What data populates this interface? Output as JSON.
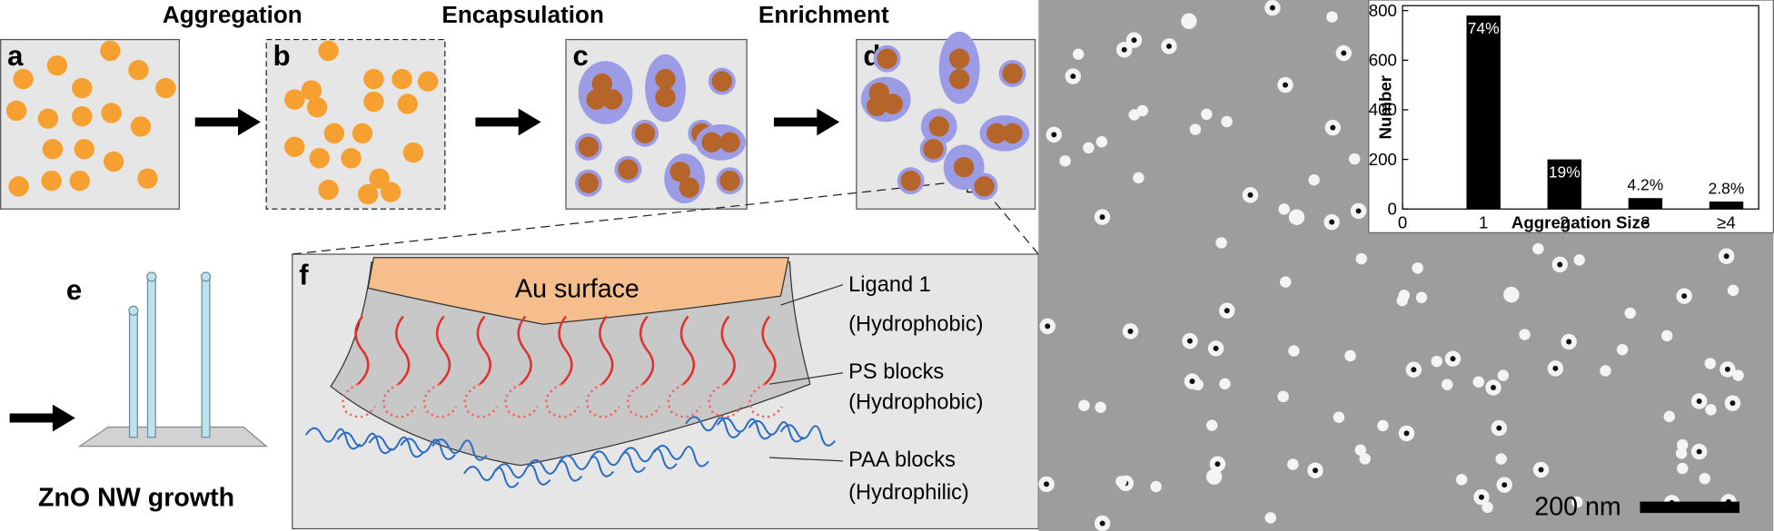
{
  "schematic": {
    "headings": [
      "Aggregation",
      "Encapsulation",
      "Enrichment"
    ],
    "panel_labels": [
      "a",
      "b",
      "c",
      "d",
      "e",
      "f"
    ],
    "growth_label": "ZnO NW growth",
    "surface_label": "Au surface",
    "annotations": [
      "Ligand 1",
      "(Hydrophobic)",
      "PS blocks",
      "(Hydrophobic)",
      "PAA blocks",
      "(Hydrophilic)"
    ],
    "scale_bar": "200 nm"
  },
  "chart_data": {
    "type": "bar",
    "x_label": "Aggregation Size",
    "y_label": "Number",
    "x": [
      1,
      2,
      3,
      4
    ],
    "values": [
      780,
      200,
      44,
      30
    ],
    "percent_labels": [
      "74%",
      "19%",
      "4.2%",
      "2.8%"
    ],
    "color": "#000000",
    "xlim": [
      0,
      4.4
    ],
    "ylim": [
      0,
      820
    ],
    "xticks": [
      0,
      1,
      2,
      3,
      {
        "value": 4,
        "label": "≥4"
      }
    ],
    "yticks": [
      0,
      200,
      400,
      600,
      800
    ]
  }
}
